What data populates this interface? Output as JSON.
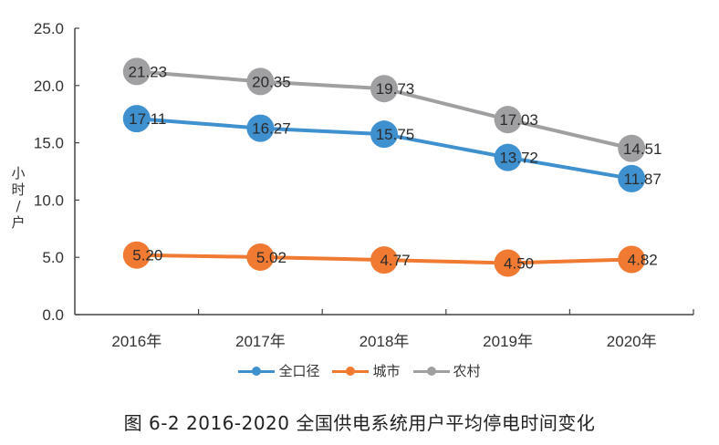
{
  "chart_data": {
    "type": "line",
    "title": "",
    "xlabel": "",
    "ylabel": "小时/户",
    "ylim": [
      0,
      25
    ],
    "yticks": [
      "0.0",
      "5.0",
      "10.0",
      "15.0",
      "20.0",
      "25.0"
    ],
    "ytick_values": [
      0,
      5,
      10,
      15,
      20,
      25
    ],
    "categories": [
      "2016年",
      "2017年",
      "2018年",
      "2019年",
      "2020年"
    ],
    "series": [
      {
        "name": "全口径",
        "color": "#3f90cf",
        "values": [
          17.11,
          16.27,
          15.75,
          13.72,
          11.87
        ],
        "labels": [
          "17.11",
          "16.27",
          "15.75",
          "13.72",
          "11.87"
        ]
      },
      {
        "name": "城市",
        "color": "#f07a32",
        "values": [
          5.2,
          5.02,
          4.77,
          4.5,
          4.82
        ],
        "labels": [
          "5.20",
          "5.02",
          "4.77",
          "4.50",
          "4.82"
        ]
      },
      {
        "name": "农村",
        "color": "#a0a0a3",
        "values": [
          21.23,
          20.35,
          19.73,
          17.03,
          14.51
        ],
        "labels": [
          "21.23",
          "20.35",
          "19.73",
          "17.03",
          "14.51"
        ]
      }
    ],
    "legend_position": "bottom",
    "grid": false
  },
  "caption": "图 6-2   2016-2020 全国供电系统用户平均停电时间变化"
}
